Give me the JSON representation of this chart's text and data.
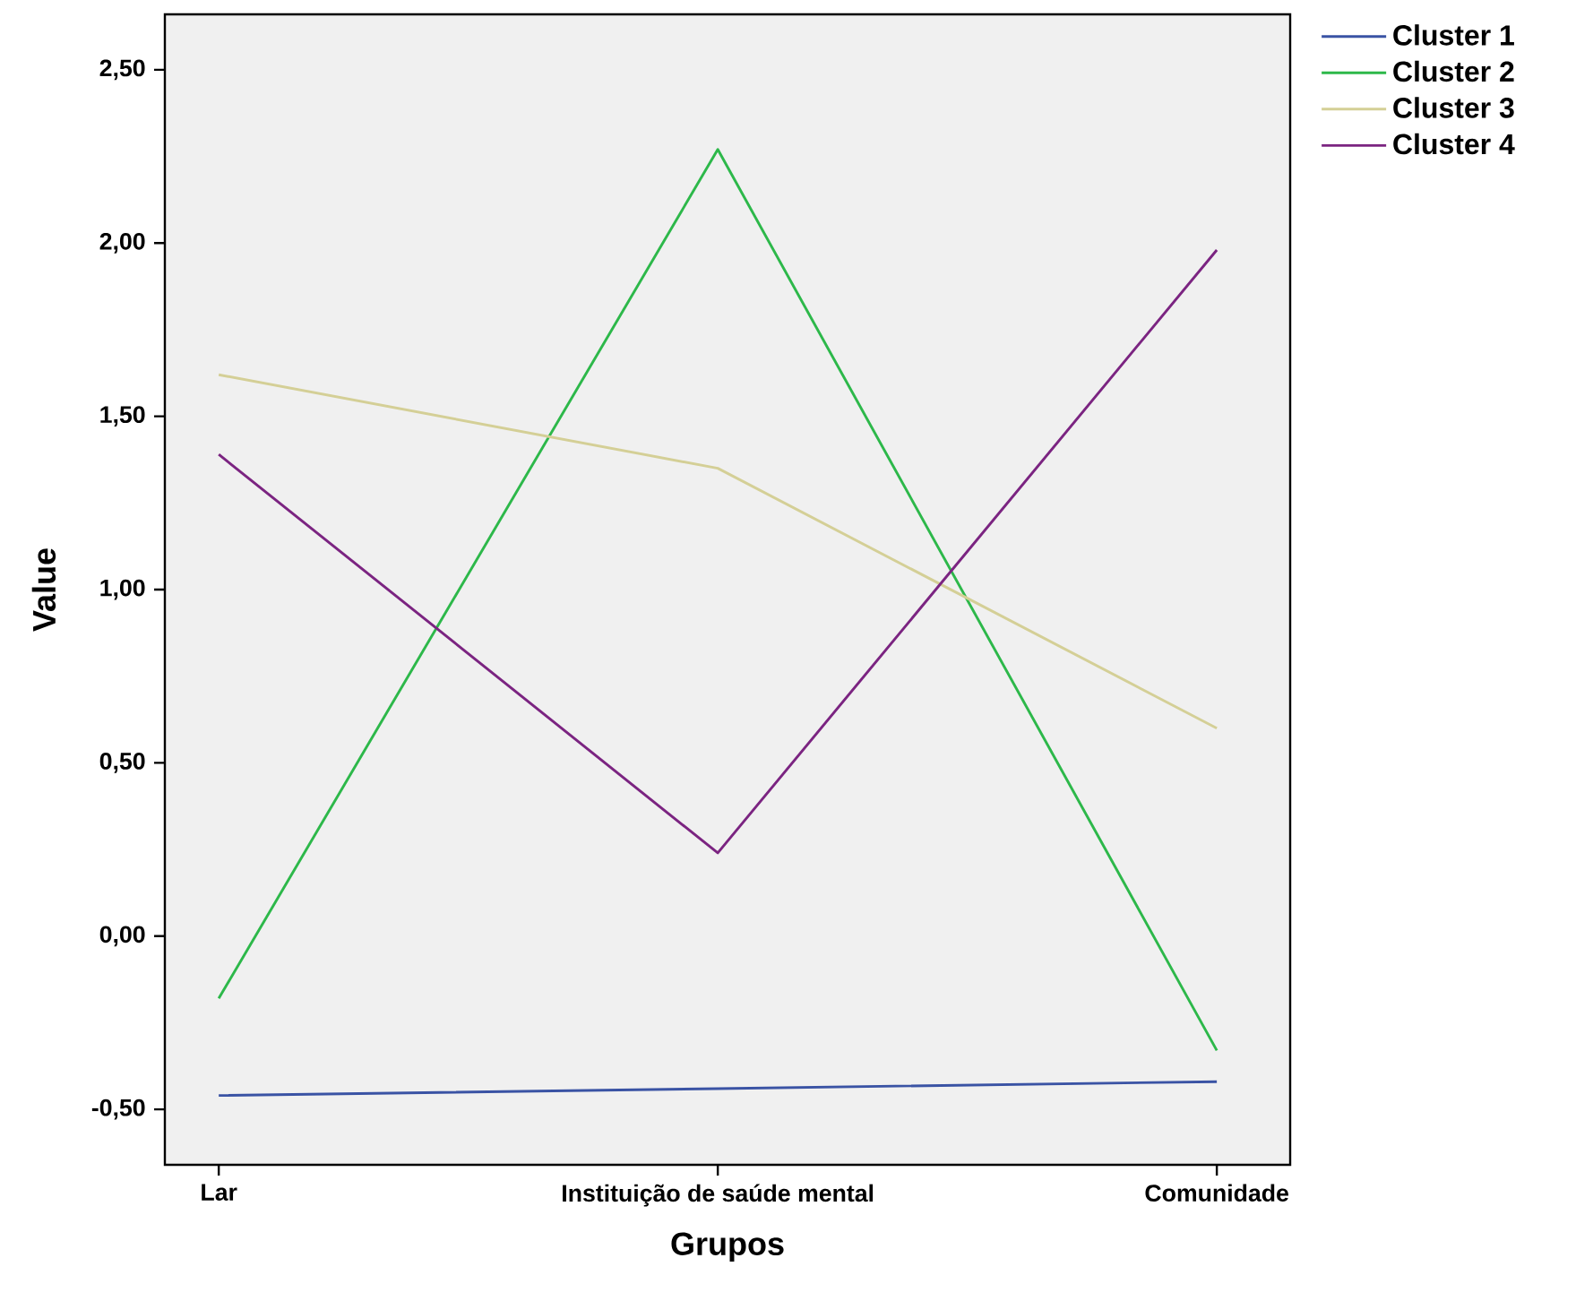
{
  "chart_data": {
    "type": "line",
    "xlabel": "Grupos",
    "ylabel": "Value",
    "categories": [
      "Lar",
      "Instituição de saúde mental",
      "Comunidade"
    ],
    "series": [
      {
        "name": "Cluster 1",
        "color": "#3a53a4",
        "values": [
          -0.46,
          -0.44,
          -0.42
        ]
      },
      {
        "name": "Cluster 2",
        "color": "#2db84a",
        "values": [
          -0.18,
          2.27,
          -0.33
        ]
      },
      {
        "name": "Cluster 3",
        "color": "#d4cf96",
        "values": [
          1.62,
          1.35,
          0.6
        ]
      },
      {
        "name": "Cluster 4",
        "color": "#7b2481",
        "values": [
          1.39,
          0.24,
          1.98
        ]
      }
    ],
    "ylim": [
      -0.66,
      2.66
    ],
    "yticks": [
      {
        "value": -0.5,
        "label": "-0,50"
      },
      {
        "value": 0,
        "label": "0,00"
      },
      {
        "value": 0.5,
        "label": "0,50"
      },
      {
        "value": 1,
        "label": "1,00"
      },
      {
        "value": 1.5,
        "label": "1,50"
      },
      {
        "value": 2,
        "label": "2,00"
      },
      {
        "value": 2.5,
        "label": "2,50"
      }
    ],
    "grid": false,
    "legend": "top right"
  }
}
